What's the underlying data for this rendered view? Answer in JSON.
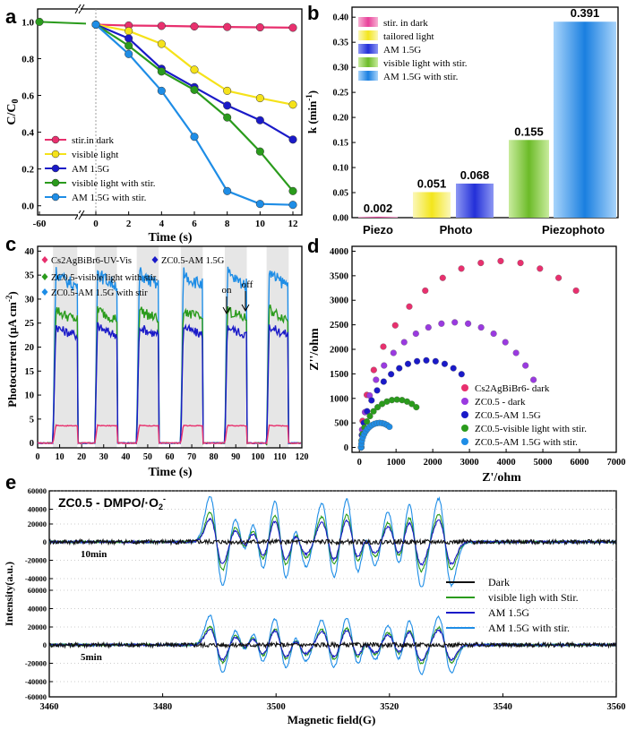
{
  "chart_data": [
    {
      "panel": "a",
      "type": "line",
      "xlabel": "Time (s)",
      "ylabel": "C/C0",
      "xticks": [
        "-60",
        "0",
        "2",
        "4",
        "6",
        "8",
        "10",
        "12"
      ],
      "yticks": [
        "0.0",
        "0.2",
        "0.4",
        "0.6",
        "0.8",
        "1.0"
      ],
      "ylim": [
        -0.05,
        1.07
      ],
      "legend_position": "lower-left",
      "series": [
        {
          "name": "stir.in dark",
          "color": "#e8306e",
          "marker": "circle",
          "x": [
            0,
            2,
            4,
            6,
            8,
            10,
            12
          ],
          "values": [
            0.985,
            0.98,
            0.978,
            0.975,
            0.972,
            0.97,
            0.968
          ],
          "pre": [
            1.0,
            0.99
          ]
        },
        {
          "name": "visible light",
          "color": "#f5e21a",
          "marker": "circle",
          "x": [
            0,
            2,
            4,
            6,
            8,
            10,
            12
          ],
          "values": [
            0.985,
            0.95,
            0.88,
            0.74,
            0.625,
            0.585,
            0.55
          ],
          "pre": [
            1.0,
            0.99
          ]
        },
        {
          "name": "AM 1.5G",
          "color": "#1a1ac8",
          "marker": "circle",
          "x": [
            0,
            2,
            4,
            6,
            8,
            10,
            12
          ],
          "values": [
            0.985,
            0.91,
            0.745,
            0.645,
            0.545,
            0.465,
            0.36
          ],
          "pre": [
            1.0,
            0.99
          ]
        },
        {
          "name": "visible light with stir.",
          "color": "#2a9b1c",
          "marker": "circle",
          "x": [
            0,
            2,
            4,
            6,
            8,
            10,
            12
          ],
          "values": [
            0.985,
            0.87,
            0.73,
            0.63,
            0.48,
            0.295,
            0.08
          ],
          "pre": [
            1.0,
            0.99
          ]
        },
        {
          "name": "AM 1.5G with stir.",
          "color": "#1e8de6",
          "marker": "circle",
          "x": [
            0,
            2,
            4,
            6,
            8,
            10,
            12
          ],
          "values": [
            0.985,
            0.825,
            0.625,
            0.375,
            0.08,
            0.01,
            0.005
          ],
          "pre": [
            1.0,
            0.99
          ]
        }
      ]
    },
    {
      "panel": "b",
      "type": "bar",
      "ylabel": "k (min-1)",
      "ylim": [
        0,
        0.42
      ],
      "yticks": [
        "0.00",
        "0.05",
        "0.10",
        "0.15",
        "0.20",
        "0.25",
        "0.30",
        "0.35",
        "0.40"
      ],
      "categories": [
        "Piezo",
        "Photo",
        "Piezophoto"
      ],
      "legend_position": "top-left",
      "legend": [
        {
          "name": "stir. in dark",
          "color": "#f07ab4"
        },
        {
          "name": "tailored light",
          "color": "#f7ef52"
        },
        {
          "name": "AM 1.5G",
          "color": "#3a48e6"
        },
        {
          "name": "visible light with stir.",
          "color": "#7cc83a"
        },
        {
          "name": "AM 1.5G with stir.",
          "color": "#2e8ae6"
        }
      ],
      "bars": [
        {
          "category": "Piezo",
          "series": "stir. in dark",
          "value": 0.002,
          "label": "0.002"
        },
        {
          "category": "Photo",
          "series": "tailored light",
          "value": 0.051,
          "label": "0.051"
        },
        {
          "category": "Photo",
          "series": "AM 1.5G",
          "value": 0.068,
          "label": "0.068"
        },
        {
          "category": "Piezophoto",
          "series": "visible light with stir.",
          "value": 0.155,
          "label": "0.155"
        },
        {
          "category": "Piezophoto",
          "series": "AM 1.5G with stir.",
          "value": 0.391,
          "label": "0.391"
        }
      ]
    },
    {
      "panel": "c",
      "type": "line",
      "xlabel": "Time (s)",
      "ylabel": "Photocurrent (μA cm-2)",
      "xlim": [
        0,
        120
      ],
      "ylim": [
        -1,
        41
      ],
      "xticks": [
        "0",
        "10",
        "20",
        "30",
        "40",
        "50",
        "60",
        "70",
        "80",
        "90",
        "100",
        "110",
        "120"
      ],
      "yticks": [
        "0",
        "5",
        "10",
        "15",
        "20",
        "25",
        "30",
        "35",
        "40"
      ],
      "on_intervals": [
        [
          7,
          18
        ],
        [
          26,
          36
        ],
        [
          45,
          55
        ],
        [
          65,
          75
        ],
        [
          85,
          95
        ],
        [
          104,
          114
        ]
      ],
      "annotations": [
        "on",
        "off"
      ],
      "legend_position": "top",
      "series": [
        {
          "name": "Cs2AgBiBr6-UV-Vis",
          "color": "#e8306e",
          "marker": "diamond",
          "on_value": 3.6
        },
        {
          "name": "ZC0.5-AM 1.5G",
          "color": "#1a1ac8",
          "marker": "diamond",
          "on_value": 24
        },
        {
          "name": "ZC0.5-visible light with stir.",
          "color": "#2a9b1c",
          "marker": "diamond",
          "on_value": 27.5
        },
        {
          "name": "ZC0.5-AM 1.5G with stir",
          "color": "#1e8de6",
          "marker": "diamond",
          "on_value": 35
        }
      ]
    },
    {
      "panel": "d",
      "type": "scatter",
      "xlabel": "Z'/ohm",
      "ylabel": "Z''/ohm",
      "xlim": [
        -200,
        7000
      ],
      "ylim": [
        -100,
        4100
      ],
      "xticks": [
        "0",
        "1000",
        "2000",
        "3000",
        "4000",
        "5000",
        "6000",
        "7000"
      ],
      "yticks": [
        "0",
        "500",
        "1000",
        "1500",
        "2000",
        "2500",
        "3000",
        "3500",
        "4000"
      ],
      "legend_position": "lower-right",
      "series": [
        {
          "name": "Cs2AgBiBr6- dark",
          "color": "#e8306e",
          "diameter": 7600,
          "x_max": 6200
        },
        {
          "name": "ZC0.5 - dark",
          "color": "#9a3ae0",
          "diameter": 5100,
          "x_max": 4800
        },
        {
          "name": "ZC0.5-AM 1.5G",
          "color": "#1a1ac8",
          "diameter": 3550,
          "x_max": 2800
        },
        {
          "name": "ZC0.5-visible light with stir.",
          "color": "#2a9b1c",
          "diameter": 1950,
          "x_max": 1600
        },
        {
          "name": "ZC0.5-AM 1.5G with stir.",
          "color": "#1e8de6",
          "diameter": 1000,
          "x_max": 850
        }
      ]
    },
    {
      "panel": "e",
      "type": "line",
      "title": "ZC0.5 - DMPO/·O2-",
      "xlabel": "Magnetic field(G)",
      "ylabel": "Intensity(a.u.)",
      "xlim": [
        3460,
        3560
      ],
      "xticks": [
        "3460",
        "3480",
        "3500",
        "3520",
        "3540",
        "3560"
      ],
      "yticks": [
        "60000",
        "40000",
        "20000",
        "0",
        "-20000",
        "-40000",
        "60000",
        "40000",
        "20000",
        "0",
        "-20000",
        "-40000",
        "-60000"
      ],
      "group_labels": [
        "10min",
        "5min"
      ],
      "line_centers": [
        3489.5,
        3493.8,
        3496.8,
        3500.8,
        3504.2,
        3509.2,
        3513.5,
        3516.5,
        3520.8,
        3524.5,
        3529.8
      ],
      "legend_position": "lower-right",
      "series": [
        {
          "name": "Dark",
          "color": "#111111",
          "amp_10min": 2500,
          "amp_5min": 2500
        },
        {
          "name": "visible ligh with Stir.",
          "color": "#2a9b1c",
          "amp_10min": 32000,
          "amp_5min": 20000
        },
        {
          "name": "AM 1.5G",
          "color": "#1a1ac8",
          "amp_10min": 25000,
          "amp_5min": 17000
        },
        {
          "name": "AM 1.5G with stir.",
          "color": "#1e8de6",
          "amp_10min": 50000,
          "amp_5min": 32000
        }
      ]
    }
  ]
}
